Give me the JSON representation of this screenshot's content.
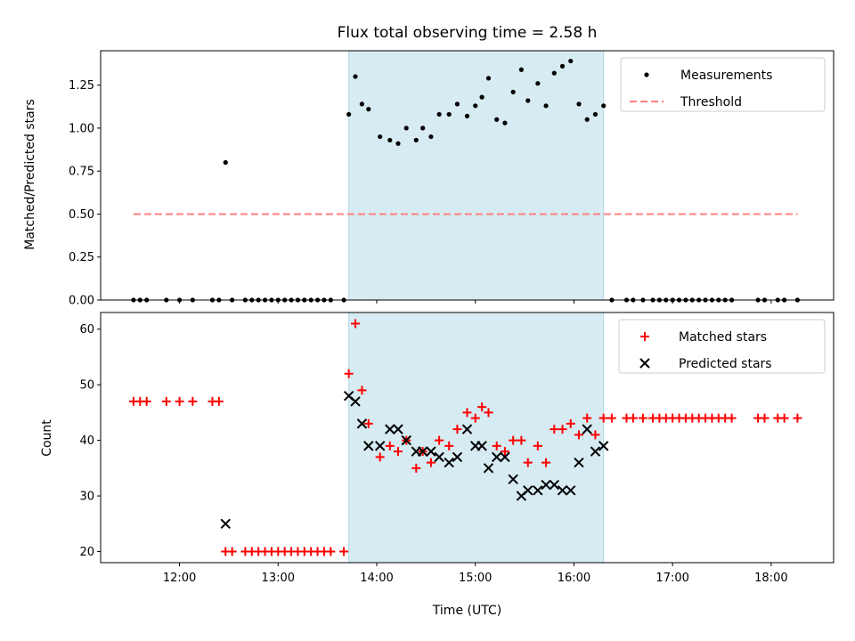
{
  "chart_data": [
    {
      "type": "scatter",
      "title": "Flux total observing time = 2.58 h",
      "ylabel": "Matched/Predicted stars",
      "xlim": [
        "11:12",
        "18:38"
      ],
      "ylim": [
        0,
        1.45
      ],
      "yticks": [
        "0.00",
        "0.25",
        "0.50",
        "0.75",
        "1.00",
        "1.25"
      ],
      "xticks": [
        "12:00",
        "13:00",
        "14:00",
        "15:00",
        "16:00",
        "17:00",
        "18:00"
      ],
      "shaded_span": [
        "13:43",
        "16:18"
      ],
      "shaded_color": "#add8e6",
      "legend_position": "top-right",
      "series": [
        {
          "name": "Measurements",
          "marker": "dot",
          "color": "#000000",
          "points": [
            [
              "11:32",
              0
            ],
            [
              "11:36",
              0
            ],
            [
              "11:40",
              0
            ],
            [
              "11:52",
              0
            ],
            [
              "12:00",
              0
            ],
            [
              "12:08",
              0
            ],
            [
              "12:20",
              0
            ],
            [
              "12:24",
              0
            ],
            [
              "12:28",
              0.8
            ],
            [
              "12:32",
              0
            ],
            [
              "12:40",
              0
            ],
            [
              "12:44",
              0
            ],
            [
              "12:48",
              0
            ],
            [
              "12:52",
              0
            ],
            [
              "12:56",
              0
            ],
            [
              "13:00",
              0
            ],
            [
              "13:04",
              0
            ],
            [
              "13:08",
              0
            ],
            [
              "13:12",
              0
            ],
            [
              "13:16",
              0
            ],
            [
              "13:20",
              0
            ],
            [
              "13:24",
              0
            ],
            [
              "13:28",
              0
            ],
            [
              "13:32",
              0
            ],
            [
              "13:40",
              0
            ],
            [
              "13:43",
              1.08
            ],
            [
              "13:47",
              1.3
            ],
            [
              "13:51",
              1.14
            ],
            [
              "13:55",
              1.11
            ],
            [
              "14:02",
              0.95
            ],
            [
              "14:08",
              0.93
            ],
            [
              "14:13",
              0.91
            ],
            [
              "14:18",
              1.0
            ],
            [
              "14:24",
              0.93
            ],
            [
              "14:28",
              1.0
            ],
            [
              "14:33",
              0.95
            ],
            [
              "14:38",
              1.08
            ],
            [
              "14:44",
              1.08
            ],
            [
              "14:49",
              1.14
            ],
            [
              "14:55",
              1.07
            ],
            [
              "15:00",
              1.13
            ],
            [
              "15:04",
              1.18
            ],
            [
              "15:08",
              1.29
            ],
            [
              "15:13",
              1.05
            ],
            [
              "15:18",
              1.03
            ],
            [
              "15:23",
              1.21
            ],
            [
              "15:28",
              1.34
            ],
            [
              "15:32",
              1.16
            ],
            [
              "15:38",
              1.26
            ],
            [
              "15:43",
              1.13
            ],
            [
              "15:48",
              1.32
            ],
            [
              "15:53",
              1.36
            ],
            [
              "15:58",
              1.39
            ],
            [
              "16:03",
              1.14
            ],
            [
              "16:08",
              1.05
            ],
            [
              "16:13",
              1.08
            ],
            [
              "16:18",
              1.13
            ],
            [
              "16:23",
              0
            ],
            [
              "16:32",
              0
            ],
            [
              "16:36",
              0
            ],
            [
              "16:42",
              0
            ],
            [
              "16:48",
              0
            ],
            [
              "16:52",
              0
            ],
            [
              "16:56",
              0
            ],
            [
              "17:00",
              0
            ],
            [
              "17:04",
              0
            ],
            [
              "17:08",
              0
            ],
            [
              "17:12",
              0
            ],
            [
              "17:16",
              0
            ],
            [
              "17:20",
              0
            ],
            [
              "17:24",
              0
            ],
            [
              "17:28",
              0
            ],
            [
              "17:32",
              0
            ],
            [
              "17:36",
              0
            ],
            [
              "17:52",
              0
            ],
            [
              "17:56",
              0
            ],
            [
              "18:04",
              0
            ],
            [
              "18:08",
              0
            ],
            [
              "18:16",
              0
            ]
          ]
        },
        {
          "name": "Threshold",
          "marker": "dashed-line",
          "color": "#ff7f7f",
          "points": [
            [
              "11:32",
              0.5
            ],
            [
              "18:16",
              0.5
            ]
          ]
        }
      ]
    },
    {
      "type": "scatter",
      "xlabel": "Time (UTC)",
      "ylabel": "Count",
      "xlim": [
        "11:12",
        "18:38"
      ],
      "ylim": [
        18,
        63
      ],
      "yticks": [
        "20",
        "30",
        "40",
        "50",
        "60"
      ],
      "xticks": [
        "12:00",
        "13:00",
        "14:00",
        "15:00",
        "16:00",
        "17:00",
        "18:00"
      ],
      "shaded_span": [
        "13:43",
        "16:18"
      ],
      "shaded_color": "#add8e6",
      "legend_position": "top-right",
      "series": [
        {
          "name": "Matched stars",
          "marker": "plus",
          "color": "#ff0000",
          "points": [
            [
              "11:32",
              47
            ],
            [
              "11:36",
              47
            ],
            [
              "11:40",
              47
            ],
            [
              "11:52",
              47
            ],
            [
              "12:00",
              47
            ],
            [
              "12:08",
              47
            ],
            [
              "12:20",
              47
            ],
            [
              "12:24",
              47
            ],
            [
              "12:28",
              20
            ],
            [
              "12:32",
              20
            ],
            [
              "12:40",
              20
            ],
            [
              "12:44",
              20
            ],
            [
              "12:48",
              20
            ],
            [
              "12:52",
              20
            ],
            [
              "12:56",
              20
            ],
            [
              "13:00",
              20
            ],
            [
              "13:04",
              20
            ],
            [
              "13:08",
              20
            ],
            [
              "13:12",
              20
            ],
            [
              "13:16",
              20
            ],
            [
              "13:20",
              20
            ],
            [
              "13:24",
              20
            ],
            [
              "13:28",
              20
            ],
            [
              "13:32",
              20
            ],
            [
              "13:40",
              20
            ],
            [
              "13:43",
              52
            ],
            [
              "13:47",
              61
            ],
            [
              "13:51",
              49
            ],
            [
              "13:55",
              43
            ],
            [
              "14:02",
              37
            ],
            [
              "14:08",
              39
            ],
            [
              "14:13",
              38
            ],
            [
              "14:18",
              40
            ],
            [
              "14:24",
              35
            ],
            [
              "14:28",
              38
            ],
            [
              "14:33",
              36
            ],
            [
              "14:38",
              40
            ],
            [
              "14:44",
              39
            ],
            [
              "14:49",
              42
            ],
            [
              "14:55",
              45
            ],
            [
              "15:00",
              44
            ],
            [
              "15:04",
              46
            ],
            [
              "15:08",
              45
            ],
            [
              "15:13",
              39
            ],
            [
              "15:18",
              38
            ],
            [
              "15:23",
              40
            ],
            [
              "15:28",
              40
            ],
            [
              "15:32",
              36
            ],
            [
              "15:38",
              39
            ],
            [
              "15:43",
              36
            ],
            [
              "15:48",
              42
            ],
            [
              "15:53",
              42
            ],
            [
              "15:58",
              43
            ],
            [
              "16:03",
              41
            ],
            [
              "16:08",
              44
            ],
            [
              "16:13",
              41
            ],
            [
              "16:18",
              44
            ],
            [
              "16:23",
              44
            ],
            [
              "16:32",
              44
            ],
            [
              "16:36",
              44
            ],
            [
              "16:42",
              44
            ],
            [
              "16:48",
              44
            ],
            [
              "16:52",
              44
            ],
            [
              "16:56",
              44
            ],
            [
              "17:00",
              44
            ],
            [
              "17:04",
              44
            ],
            [
              "17:08",
              44
            ],
            [
              "17:12",
              44
            ],
            [
              "17:16",
              44
            ],
            [
              "17:20",
              44
            ],
            [
              "17:24",
              44
            ],
            [
              "17:28",
              44
            ],
            [
              "17:32",
              44
            ],
            [
              "17:36",
              44
            ],
            [
              "17:52",
              44
            ],
            [
              "17:56",
              44
            ],
            [
              "18:04",
              44
            ],
            [
              "18:08",
              44
            ],
            [
              "18:16",
              44
            ]
          ]
        },
        {
          "name": "Predicted stars",
          "marker": "x",
          "color": "#000000",
          "points": [
            [
              "12:28",
              25
            ],
            [
              "13:43",
              48
            ],
            [
              "13:47",
              47
            ],
            [
              "13:51",
              43
            ],
            [
              "13:55",
              39
            ],
            [
              "14:02",
              39
            ],
            [
              "14:08",
              42
            ],
            [
              "14:13",
              42
            ],
            [
              "14:18",
              40
            ],
            [
              "14:24",
              38
            ],
            [
              "14:28",
              38
            ],
            [
              "14:33",
              38
            ],
            [
              "14:38",
              37
            ],
            [
              "14:44",
              36
            ],
            [
              "14:49",
              37
            ],
            [
              "14:55",
              42
            ],
            [
              "15:00",
              39
            ],
            [
              "15:04",
              39
            ],
            [
              "15:08",
              35
            ],
            [
              "15:13",
              37
            ],
            [
              "15:18",
              37
            ],
            [
              "15:23",
              33
            ],
            [
              "15:28",
              30
            ],
            [
              "15:32",
              31
            ],
            [
              "15:38",
              31
            ],
            [
              "15:43",
              32
            ],
            [
              "15:48",
              32
            ],
            [
              "15:53",
              31
            ],
            [
              "15:58",
              31
            ],
            [
              "16:03",
              36
            ],
            [
              "16:08",
              42
            ],
            [
              "16:13",
              38
            ],
            [
              "16:18",
              39
            ]
          ]
        }
      ]
    }
  ]
}
